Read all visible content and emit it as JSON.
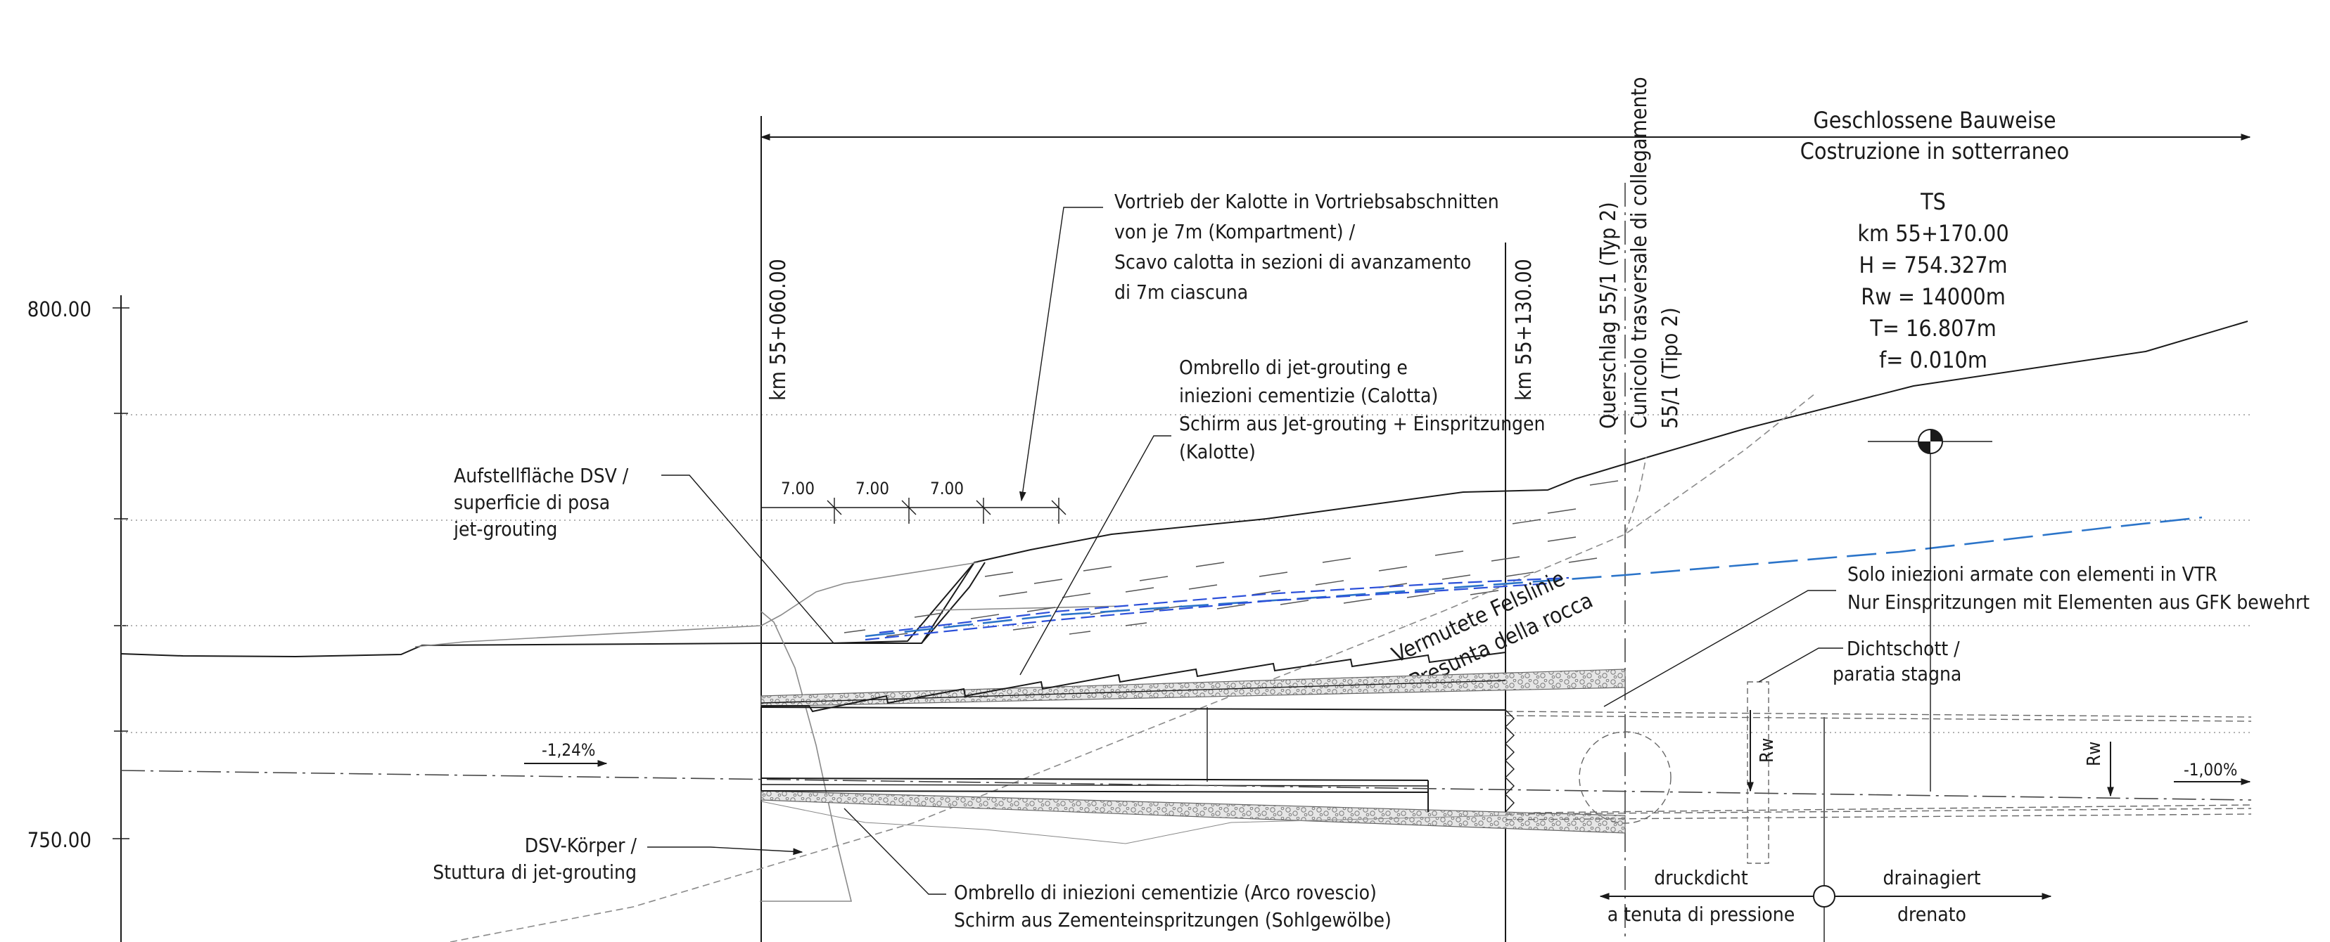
{
  "axis": {
    "label_upper": "800.00",
    "label_lower": "750.00"
  },
  "header": {
    "method_de": "Geschlossene Bauweise",
    "method_it": "Costruzione in sotterraneo"
  },
  "stations": {
    "km_060": "km 55+060.00",
    "km_130": "km 55+130.00",
    "cross_passage_1": "Querschlag 55/1 (Typ 2)",
    "cross_passage_2": "Cunicolo trasversale di collegamento",
    "cross_passage_3": "55/1 (Tipo 2)"
  },
  "ts_info": {
    "label": "TS",
    "km": "km 55+170.00",
    "h": "H = 754.327m",
    "rw": "Rw = 14000m",
    "t": "T= 16.807m",
    "f": "f= 0.010m"
  },
  "annotations": {
    "vortrieb": [
      "Vortrieb der Kalotte in Vortriebsabschnitten",
      "von je 7m  (Kompartment) /",
      "Scavo calotta in sezioni di avanzamento",
      "di 7m ciascuna"
    ],
    "ombrello_jet": [
      "Ombrello di jet-grouting e",
      "iniezioni cementizie (Calotta)",
      "Schirm aus Jet-grouting  + Einspritzungen",
      "(Kalotte)"
    ],
    "aufstell": [
      "Aufstellfläche DSV /",
      "superficie di posa",
      "jet-grouting"
    ],
    "solo_iniezioni": [
      "Solo iniezioni armate con elementi in VTR",
      "Nur Einspritzungen mit Elementen aus GFK bewehrt"
    ],
    "dichtschott": [
      "Dichtschott /",
      "paratia stagna"
    ],
    "dsv_koerper": [
      "DSV-Körper /",
      "Stuttura di jet-grouting"
    ],
    "ombrello_arco": [
      "Ombrello di iniezioni cementizie (Arco rovescio)",
      "Schirm aus Zementeinspritzungen (Sohlgewölbe)"
    ],
    "felslinie_de": "Vermutete Felslinie",
    "felslinie_it": "Presunta della rocca"
  },
  "segments": {
    "s1": "7.00",
    "s2": "7.00",
    "s3": "7.00"
  },
  "gradients": {
    "left": "-1,24%",
    "right": "-1,00%"
  },
  "rw_labels": {
    "a": "Rw",
    "b": "Rw"
  },
  "zones": {
    "druckdicht": "druckdicht",
    "tenuta": "a tenuta di pressione",
    "drainagiert": "drainagiert",
    "drenato": "drenato"
  },
  "colors": {
    "linework": "#1a1a1a",
    "rock_line": "#2b74c9",
    "groundwater_line": "#2b4fd9",
    "auxiliary": "#8a8a8a"
  }
}
